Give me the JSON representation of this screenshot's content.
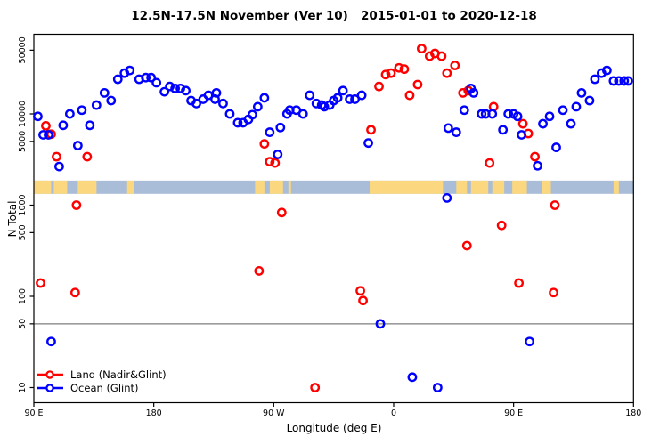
{
  "chart_data": {
    "type": "scatter",
    "title": "12.5N-17.5N November (Ver 10)   2015-01-01 to 2020-12-18",
    "xlabel": "Longitude (deg E)",
    "ylabel": "N Total",
    "x_axis": {
      "note": "axis spans 450 degrees eastward starting at 90E; deg values are unwrapped (deg>180 means deg-360 west longitude)",
      "range_deg": [
        90,
        540
      ],
      "ticks": [
        {
          "deg": 90,
          "label": "90 E"
        },
        {
          "deg": 180,
          "label": "180"
        },
        {
          "deg": 270,
          "label": "90 W"
        },
        {
          "deg": 360,
          "label": "0"
        },
        {
          "deg": 450,
          "label": "90 E"
        },
        {
          "deg": 540,
          "label": "180"
        }
      ]
    },
    "y_axis": {
      "scale": "log10",
      "range": [
        8,
        70000
      ],
      "ticks": [
        10,
        50,
        100,
        500,
        1000,
        5000,
        10000,
        50000
      ]
    },
    "reference_line_y": 50,
    "map_band": {
      "sea_color": "#a9bcd8",
      "land_color": "#fbd87f",
      "value_range": [
        1330,
        1860
      ],
      "land_segments_deg": [
        [
          90,
          103
        ],
        [
          105,
          115
        ],
        [
          123,
          137
        ],
        [
          160,
          165
        ],
        [
          256,
          263
        ],
        [
          267,
          277
        ],
        [
          281,
          283
        ],
        [
          342,
          397
        ],
        [
          407,
          415
        ],
        [
          418,
          431
        ],
        [
          434,
          443
        ],
        [
          449,
          460
        ],
        [
          471,
          478
        ],
        [
          525,
          529
        ]
      ]
    },
    "legend": [
      {
        "label": "Land (Nadir&Glint)",
        "color": "#ff0000"
      },
      {
        "label": "Ocean (Glint)",
        "color": "#0000ff"
      }
    ],
    "grid": "off",
    "legend_position": "bottom-left",
    "series": [
      {
        "name": "Land (Nadir&Glint)",
        "color": "#ff0000",
        "marker": "open-circle",
        "points": [
          [
            95,
            140
          ],
          [
            99,
            7400
          ],
          [
            103,
            6000
          ],
          [
            107,
            3400
          ],
          [
            121,
            110
          ],
          [
            122,
            1000
          ],
          [
            130,
            3400
          ],
          [
            259,
            190
          ],
          [
            263,
            4700
          ],
          [
            267,
            3000
          ],
          [
            271,
            2900
          ],
          [
            276,
            830
          ],
          [
            301,
            10
          ],
          [
            335,
            115
          ],
          [
            337,
            90
          ],
          [
            343,
            6700
          ],
          [
            349,
            20000
          ],
          [
            354,
            27000
          ],
          [
            358,
            28000
          ],
          [
            364,
            32000
          ],
          [
            368,
            31000
          ],
          [
            372,
            16000
          ],
          [
            378,
            21000
          ],
          [
            381,
            52000
          ],
          [
            387,
            43000
          ],
          [
            391,
            46000
          ],
          [
            396,
            43000
          ],
          [
            400,
            28000
          ],
          [
            406,
            34000
          ],
          [
            412,
            17000
          ],
          [
            415,
            360
          ],
          [
            416,
            18000
          ],
          [
            432,
            2900
          ],
          [
            435,
            12000
          ],
          [
            441,
            600
          ],
          [
            454,
            140
          ],
          [
            457,
            7800
          ],
          [
            461,
            6100
          ],
          [
            466,
            3400
          ],
          [
            480,
            110
          ],
          [
            481,
            1000
          ]
        ]
      },
      {
        "name": "Ocean (Glint)",
        "color": "#0000ff",
        "marker": "open-circle",
        "points": [
          [
            93,
            9400
          ],
          [
            97,
            5900
          ],
          [
            101,
            5900
          ],
          [
            103,
            32
          ],
          [
            109,
            2650
          ],
          [
            112,
            7500
          ],
          [
            117,
            10000
          ],
          [
            123,
            4500
          ],
          [
            126,
            11000
          ],
          [
            132,
            7500
          ],
          [
            137,
            12500
          ],
          [
            143,
            17000
          ],
          [
            148,
            14000
          ],
          [
            153,
            24000
          ],
          [
            158,
            28000
          ],
          [
            162,
            30000
          ],
          [
            169,
            24000
          ],
          [
            174,
            25000
          ],
          [
            178,
            25000
          ],
          [
            182,
            22000
          ],
          [
            188,
            17500
          ],
          [
            192,
            20000
          ],
          [
            196,
            19000
          ],
          [
            200,
            19000
          ],
          [
            204,
            18000
          ],
          [
            208,
            14000
          ],
          [
            212,
            13000
          ],
          [
            217,
            14500
          ],
          [
            221,
            16000
          ],
          [
            226,
            14500
          ],
          [
            227,
            17000
          ],
          [
            232,
            13000
          ],
          [
            237,
            10000
          ],
          [
            243,
            8000
          ],
          [
            247,
            8000
          ],
          [
            251,
            8700
          ],
          [
            254,
            9800
          ],
          [
            258,
            12000
          ],
          [
            263,
            15000
          ],
          [
            267,
            6300
          ],
          [
            273,
            3600
          ],
          [
            275,
            7100
          ],
          [
            280,
            10000
          ],
          [
            282,
            11000
          ],
          [
            287,
            11000
          ],
          [
            292,
            10000
          ],
          [
            297,
            16000
          ],
          [
            302,
            13000
          ],
          [
            306,
            12500
          ],
          [
            308,
            12000
          ],
          [
            312,
            12500
          ],
          [
            315,
            14000
          ],
          [
            318,
            15000
          ],
          [
            322,
            18000
          ],
          [
            327,
            14500
          ],
          [
            331,
            14500
          ],
          [
            336,
            16000
          ],
          [
            341,
            4800
          ],
          [
            350,
            50
          ],
          [
            374,
            13
          ],
          [
            393,
            10
          ],
          [
            400,
            1200
          ],
          [
            401,
            7000
          ],
          [
            407,
            6300
          ],
          [
            413,
            11000
          ],
          [
            418,
            19000
          ],
          [
            420,
            17000
          ],
          [
            426,
            10000
          ],
          [
            429,
            10000
          ],
          [
            434,
            10000
          ],
          [
            442,
            6700
          ],
          [
            446,
            10000
          ],
          [
            450,
            10000
          ],
          [
            453,
            9400
          ],
          [
            456,
            5900
          ],
          [
            462,
            32
          ],
          [
            468,
            2700
          ],
          [
            472,
            7800
          ],
          [
            477,
            9400
          ],
          [
            482,
            4300
          ],
          [
            487,
            11000
          ],
          [
            493,
            7800
          ],
          [
            497,
            12000
          ],
          [
            501,
            17000
          ],
          [
            507,
            14000
          ],
          [
            511,
            24000
          ],
          [
            516,
            28000
          ],
          [
            520,
            30000
          ],
          [
            525,
            23000
          ],
          [
            529,
            23000
          ],
          [
            533,
            23000
          ],
          [
            536,
            23000
          ]
        ]
      }
    ]
  }
}
